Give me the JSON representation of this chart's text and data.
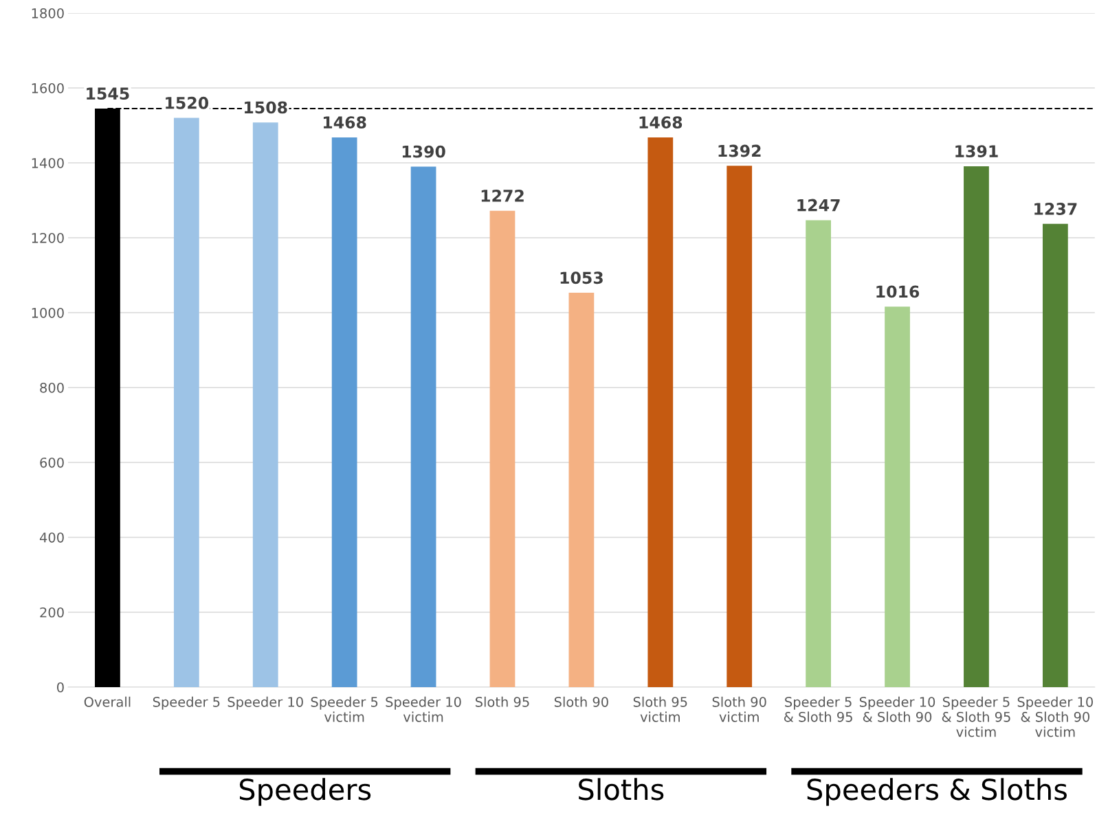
{
  "chart_data": {
    "type": "bar",
    "categories": [
      "Overall",
      "Speeder 5",
      "Speeder 10",
      "Speeder 5\nvictim",
      "Speeder 10\nvictim",
      "Sloth 95",
      "Sloth 90",
      "Sloth 95\nvictim",
      "Sloth 90\nvictim",
      "Speeder 5\n& Sloth 95",
      "Speeder 10\n& Sloth 90",
      "Speeder 5\n& Sloth 95\nvictim",
      "Speeder 10\n& Sloth 90\nvictim"
    ],
    "values": [
      1545,
      1520,
      1508,
      1468,
      1390,
      1272,
      1053,
      1468,
      1392,
      1247,
      1016,
      1391,
      1237
    ],
    "colors": [
      "#000000",
      "#9dc3e6",
      "#9dc3e6",
      "#5b9bd5",
      "#5b9bd5",
      "#f4b183",
      "#f4b183",
      "#c55a11",
      "#c55a11",
      "#a9d18e",
      "#a9d18e",
      "#548235",
      "#548235"
    ],
    "data_labels": true,
    "ylim": [
      0,
      1800
    ],
    "yticks": [
      0,
      200,
      400,
      600,
      800,
      1000,
      1200,
      1400,
      1600,
      1800
    ],
    "grid": "y",
    "ref_lines": [
      {
        "axis": "y",
        "value": 1545,
        "color": "#000000",
        "line_style": "dashed"
      }
    ],
    "annotations": [
      "Speeders",
      "Sloths",
      "Speeders & Sloths"
    ]
  }
}
